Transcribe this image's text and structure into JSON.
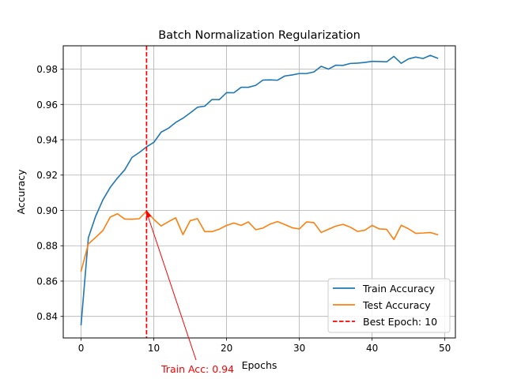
{
  "chart_data": {
    "type": "line",
    "title": "Batch Normalization Regularization",
    "xlabel": "Epochs",
    "ylabel": "Accuracy",
    "xlim": [
      -2.45,
      51.45
    ],
    "ylim": [
      0.8278,
      0.9932
    ],
    "xticks": [
      0,
      10,
      20,
      30,
      40,
      50
    ],
    "xtick_labels": [
      "0",
      "10",
      "20",
      "30",
      "40",
      "50"
    ],
    "yticks": [
      0.84,
      0.86,
      0.88,
      0.9,
      0.92,
      0.94,
      0.96,
      0.98
    ],
    "ytick_labels": [
      "0.84",
      "0.86",
      "0.88",
      "0.90",
      "0.92",
      "0.94",
      "0.96",
      "0.98"
    ],
    "grid": true,
    "legend_position": "lower-right",
    "x": [
      0,
      1,
      2,
      3,
      4,
      5,
      6,
      7,
      8,
      9,
      10,
      11,
      12,
      13,
      14,
      15,
      16,
      17,
      18,
      19,
      20,
      21,
      22,
      23,
      24,
      25,
      26,
      27,
      28,
      29,
      30,
      31,
      32,
      33,
      34,
      35,
      36,
      37,
      38,
      39,
      40,
      41,
      42,
      43,
      44,
      45,
      46,
      47,
      48,
      49
    ],
    "series": [
      {
        "name": "Train Accuracy",
        "color": "#1f77b4",
        "values": [
          0.8353,
          0.8845,
          0.8967,
          0.906,
          0.913,
          0.9183,
          0.923,
          0.93,
          0.9328,
          0.936,
          0.9385,
          0.9443,
          0.9465,
          0.9498,
          0.9522,
          0.9552,
          0.9584,
          0.959,
          0.9628,
          0.9627,
          0.9667,
          0.9666,
          0.9697,
          0.9697,
          0.9708,
          0.9738,
          0.9739,
          0.9737,
          0.9761,
          0.9767,
          0.9775,
          0.9775,
          0.9784,
          0.9816,
          0.98,
          0.9822,
          0.9821,
          0.9832,
          0.9834,
          0.9838,
          0.9844,
          0.9843,
          0.9841,
          0.9872,
          0.9833,
          0.9858,
          0.9868,
          0.986,
          0.9878,
          0.9862
        ]
      },
      {
        "name": "Test Accuracy",
        "color": "#ff7f0e",
        "values": [
          0.8656,
          0.881,
          0.8847,
          0.8886,
          0.8962,
          0.8981,
          0.8951,
          0.895,
          0.8953,
          0.8996,
          0.8949,
          0.8912,
          0.8936,
          0.8958,
          0.8863,
          0.8942,
          0.8953,
          0.888,
          0.888,
          0.8894,
          0.8915,
          0.8929,
          0.8915,
          0.8935,
          0.8891,
          0.89,
          0.8923,
          0.8937,
          0.892,
          0.8902,
          0.8895,
          0.8935,
          0.8931,
          0.8875,
          0.8893,
          0.8911,
          0.8921,
          0.8905,
          0.8881,
          0.8888,
          0.8915,
          0.8895,
          0.8893,
          0.8835,
          0.8916,
          0.8896,
          0.887,
          0.8872,
          0.8875,
          0.8863
        ]
      }
    ],
    "vline": {
      "x": 9,
      "label": "Best Epoch: 10",
      "color": "#ff0000",
      "style": "dashed"
    },
    "annotation": {
      "text": "Train Acc: 0.94",
      "point": [
        9,
        0.9
      ],
      "text_position": [
        11.5,
        0.831
      ],
      "color": "#ff0000"
    }
  }
}
